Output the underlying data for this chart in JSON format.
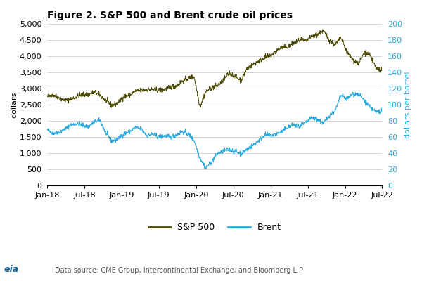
{
  "title": "Figure 2. S&P 500 and Brent crude oil prices",
  "ylabel_left": "dollars",
  "ylabel_right": "dollars per barrel",
  "source_text": "Data source: CME Group, Intercontinental Exchange, and Bloomberg L.P",
  "sp500_color": "#4a4a00",
  "brent_color": "#29abe2",
  "ylim_left": [
    0,
    5000
  ],
  "ylim_right": [
    0,
    200
  ],
  "yticks_left": [
    0,
    500,
    1000,
    1500,
    2000,
    2500,
    3000,
    3500,
    4000,
    4500,
    5000
  ],
  "yticks_right": [
    0,
    20,
    40,
    60,
    80,
    100,
    120,
    140,
    160,
    180,
    200
  ],
  "xtick_labels": [
    "Jan-18",
    "Jul-18",
    "Jan-19",
    "Jul-19",
    "Jan-20",
    "Jul-20",
    "Jan-21",
    "Jul-21",
    "Jan-22",
    "Jul-22"
  ],
  "legend_sp500": "S&P 500",
  "legend_brent": "Brent",
  "background_color": "#ffffff",
  "grid_color": "#c8c8c8"
}
